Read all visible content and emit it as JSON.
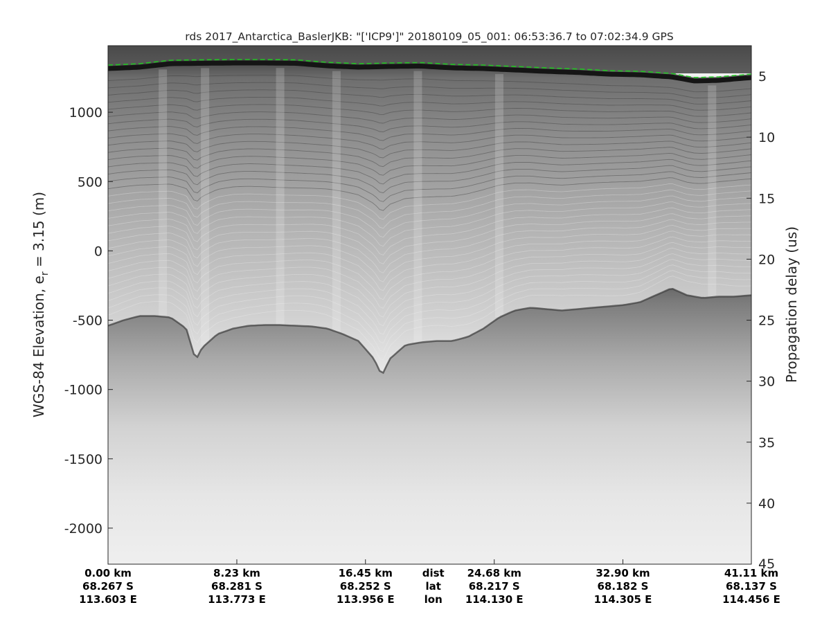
{
  "colors": {
    "background": "#ffffff",
    "axis": "#262626",
    "surface_line": "#22c322",
    "radar_dark": "#1e1e1e",
    "radar_light": "#f2f2f2"
  },
  "chart_data": {
    "type": "heatmap",
    "title": "rds 2017_Antarctica_BaslerJKB: \"['ICP9']\"  20180109_05_001: 06:53:36.7 to 07:02:34.9 GPS",
    "ylabel_left": "WGS-84 Elevation, e",
    "ylabel_left_subscript": "r",
    "ylabel_left_suffix": " = 3.15 (m)",
    "ylabel_right": "Propagation delay (us)",
    "colormap": "gray",
    "grid": false,
    "xlim_km": [
      0,
      41.11
    ],
    "ylim_left_m": [
      -2260,
      1480
    ],
    "ylim_right_us": [
      2.5,
      45
    ],
    "y_left_ticks": [
      {
        "value": 1000,
        "label": "1000"
      },
      {
        "value": 500,
        "label": "500"
      },
      {
        "value": 0,
        "label": "0"
      },
      {
        "value": -500,
        "label": "-500"
      },
      {
        "value": -1000,
        "label": "-1000"
      },
      {
        "value": -1500,
        "label": "-1500"
      },
      {
        "value": -2000,
        "label": "-2000"
      }
    ],
    "y_right_ticks": [
      {
        "value": 5,
        "label": "5"
      },
      {
        "value": 10,
        "label": "10"
      },
      {
        "value": 15,
        "label": "15"
      },
      {
        "value": 20,
        "label": "20"
      },
      {
        "value": 25,
        "label": "25"
      },
      {
        "value": 30,
        "label": "30"
      },
      {
        "value": 35,
        "label": "35"
      },
      {
        "value": 40,
        "label": "40"
      },
      {
        "value": 45,
        "label": "45"
      }
    ],
    "x_ticks": [
      {
        "dist_km": 0,
        "dist": "0.00 km",
        "lat": "68.267 S",
        "lon": "113.603 E"
      },
      {
        "dist_km": 8.23,
        "dist": "8.23 km",
        "lat": "68.281 S",
        "lon": "113.773 E"
      },
      {
        "dist_km": 16.45,
        "dist": "16.45 km",
        "lat": "68.252 S",
        "lon": "113.956 E"
      },
      {
        "dist_km": 24.68,
        "dist": "24.68 km",
        "lat": "68.217 S",
        "lon": "114.130 E"
      },
      {
        "dist_km": 32.9,
        "dist": "32.90 km",
        "lat": "68.182 S",
        "lon": "114.305 E"
      },
      {
        "dist_km": 41.11,
        "dist": "41.11 km",
        "lat": "68.137 S",
        "lon": "114.456 E"
      }
    ],
    "x_row_labels": {
      "dist": "dist",
      "lat": "lat",
      "lon": "lon"
    },
    "surface_elevation": {
      "name": "surface",
      "x_km": [
        0,
        2,
        4,
        6,
        8,
        10,
        12,
        14,
        16,
        18,
        20,
        22,
        24,
        26,
        28,
        30,
        32,
        34,
        36,
        37.5,
        39,
        41.11
      ],
      "elev_m": [
        1340,
        1350,
        1375,
        1378,
        1380,
        1380,
        1378,
        1360,
        1350,
        1355,
        1358,
        1345,
        1340,
        1330,
        1320,
        1312,
        1300,
        1295,
        1280,
        1250,
        1255,
        1275
      ]
    },
    "bed_elevation": {
      "name": "bed",
      "x_km": [
        0,
        1,
        2,
        3,
        4,
        5,
        5.6,
        6,
        7,
        8,
        9,
        10,
        11,
        12,
        13,
        14,
        15,
        16,
        17,
        17.5,
        18,
        19,
        20,
        21,
        22,
        23,
        24,
        25,
        26,
        27,
        28,
        29,
        30,
        31,
        32,
        33,
        34,
        35,
        36,
        37,
        38,
        39,
        40,
        41.11
      ],
      "elev_m": [
        -540,
        -500,
        -470,
        -470,
        -480,
        -560,
        -790,
        -700,
        -600,
        -560,
        -540,
        -535,
        -535,
        -540,
        -545,
        -560,
        -600,
        -650,
        -780,
        -900,
        -780,
        -680,
        -660,
        -650,
        -650,
        -620,
        -560,
        -480,
        -430,
        -410,
        -420,
        -430,
        -420,
        -410,
        -400,
        -390,
        -370,
        -320,
        -270,
        -320,
        -340,
        -330,
        -330,
        -320
      ]
    }
  }
}
